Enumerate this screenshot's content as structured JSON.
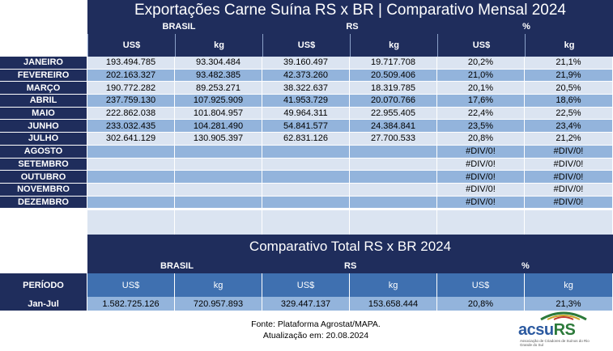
{
  "title": "Exportações Carne Suína RS x BR | Comparativo Mensal 2024",
  "groups": {
    "brasil": "BRASIL",
    "rs": "RS",
    "pct": "%"
  },
  "units": [
    "US$",
    "kg",
    "US$",
    "kg",
    "US$",
    "kg"
  ],
  "rows": [
    {
      "month": "JANEIRO",
      "vals": [
        "193.494.785",
        "93.304.484",
        "39.160.497",
        "19.717.708",
        "20,2%",
        "21,1%"
      ]
    },
    {
      "month": "FEVEREIRO",
      "vals": [
        "202.163.327",
        "93.482.385",
        "42.373.260",
        "20.509.406",
        "21,0%",
        "21,9%"
      ]
    },
    {
      "month": "MARÇO",
      "vals": [
        "190.772.282",
        "89.253.271",
        "38.322.637",
        "18.319.785",
        "20,1%",
        "20,5%"
      ]
    },
    {
      "month": "ABRIL",
      "vals": [
        "237.759.130",
        "107.925.909",
        "41.953.729",
        "20.070.766",
        "17,6%",
        "18,6%"
      ]
    },
    {
      "month": "MAIO",
      "vals": [
        "222.862.038",
        "101.804.957",
        "49.964.311",
        "22.955.405",
        "22,4%",
        "22,5%"
      ]
    },
    {
      "month": "JUNHO",
      "vals": [
        "233.032.435",
        "104.281.490",
        "54.841.577",
        "24.384.841",
        "23,5%",
        "23,4%"
      ]
    },
    {
      "month": "JULHO",
      "vals": [
        "302.641.129",
        "130.905.397",
        "62.831.126",
        "27.700.533",
        "20,8%",
        "21,2%"
      ]
    },
    {
      "month": "AGOSTO",
      "vals": [
        "",
        "",
        "",
        "",
        "#DIV/0!",
        "#DIV/0!"
      ]
    },
    {
      "month": "SETEMBRO",
      "vals": [
        "",
        "",
        "",
        "",
        "#DIV/0!",
        "#DIV/0!"
      ]
    },
    {
      "month": "OUTUBRO",
      "vals": [
        "",
        "",
        "",
        "",
        "#DIV/0!",
        "#DIV/0!"
      ]
    },
    {
      "month": "NOVEMBRO",
      "vals": [
        "",
        "",
        "",
        "",
        "#DIV/0!",
        "#DIV/0!"
      ]
    },
    {
      "month": "DEZEMBRO",
      "vals": [
        "",
        "",
        "",
        "",
        "#DIV/0!",
        "#DIV/0!"
      ]
    }
  ],
  "total": {
    "title": "Comparativo Total RS x BR 2024",
    "period_label": "PERÍODO",
    "period": "Jan-Jul",
    "vals": [
      "1.582.725.126",
      "720.957.893",
      "329.447.137",
      "153.658.444",
      "20,8%",
      "21,3%"
    ]
  },
  "footer": {
    "source": "Fonte: Plataforma Agrostat/MAPA.",
    "updated": "Atualização em: 20.08.2024"
  },
  "logo": {
    "name_part1": "acsu",
    "name_part2": "RS",
    "subtitle": "Associação de Criadores de Suínos do Rio Grande do Sul"
  },
  "colors": {
    "navy": "#1f2d5c",
    "light": "#dbe4f1",
    "mid": "#93b4dc",
    "steel": "#3f70b0"
  }
}
